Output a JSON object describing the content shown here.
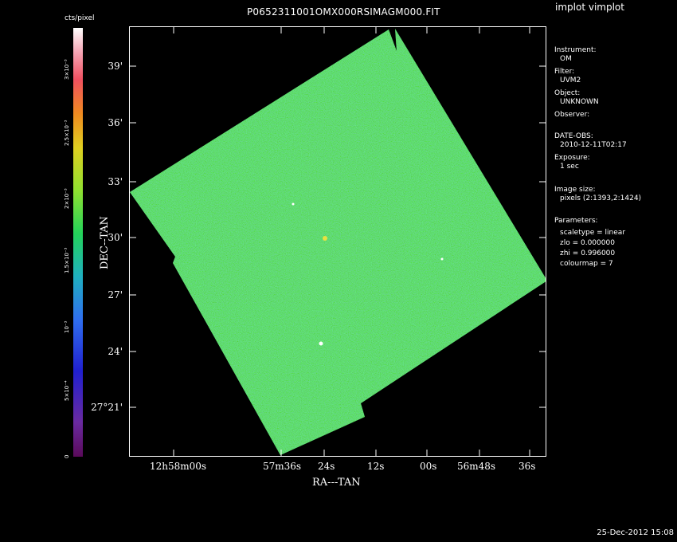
{
  "window": {
    "title": "P0652311001OMX000RSIMAGM000.FIT",
    "app_name": "implot vimplot",
    "timestamp": "25-Dec-2012 15:08"
  },
  "colorbar": {
    "unit_label": "cts/pixel",
    "tick_labels": [
      "0",
      "5×10⁻⁴",
      "10⁻³",
      "1.5×10⁻³",
      "2×10⁻³",
      "2.5×10⁻³",
      "3×10⁻³"
    ],
    "colormap": "rainbow"
  },
  "axes": {
    "ylabel": "DEC--TAN",
    "xlabel": "RA---TAN",
    "yticks": [
      "39'",
      "36'",
      "33'",
      "30'",
      "27'",
      "24'",
      "27°21'"
    ],
    "xticks": [
      "12h58m00s",
      "57m36s",
      "24s",
      "12s",
      "00s",
      "56m48s",
      "36s"
    ]
  },
  "info_panel": {
    "instrument_label": "Instrument:",
    "instrument_value": "OM",
    "filter_label": "Filter:",
    "filter_value": "UVM2",
    "object_label": "Object:",
    "object_value": "UNKNOWN",
    "observer_label": "Observer:",
    "date_label": "DATE-OBS:",
    "date_value": "2010-12-11T02:17",
    "exposure_label": "Exposure:",
    "exposure_value": "1 sec",
    "imagesize_label": "Image size:",
    "imagesize_value": "pixels (2:1393,2:1424)",
    "params_label": "Parameters:",
    "param_scaletype": "scaletype = linear",
    "param_zlo": "zlo = 0.000000",
    "param_zhi": "zhi = 0.996000",
    "param_colourmap": "colourmap = 7"
  },
  "colors": {
    "background": "#000000",
    "image_base": "#3fd45a",
    "image_noise_low": "#2a8fd0",
    "image_noise_high": "#d8e83a"
  }
}
